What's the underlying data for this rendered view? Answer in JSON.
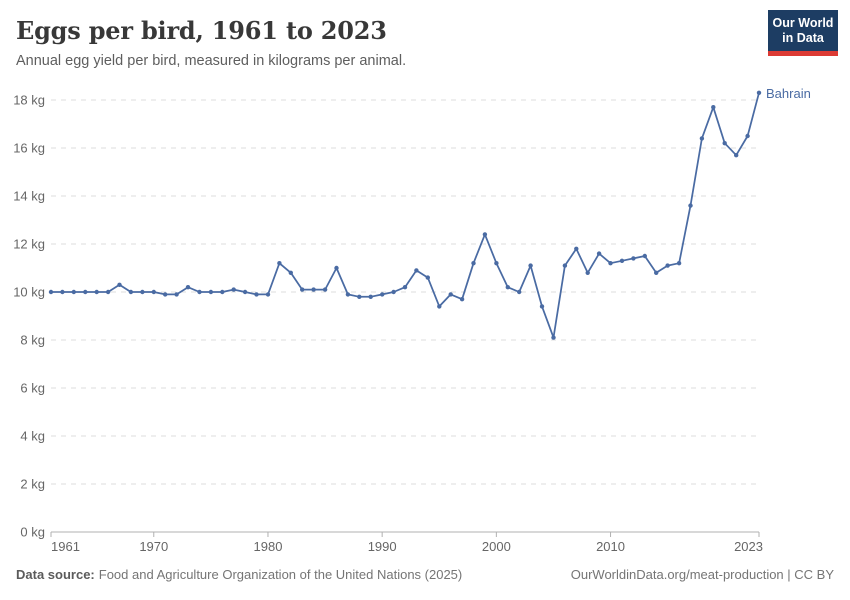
{
  "header": {
    "title": "Eggs per bird, 1961 to 2023",
    "subtitle": "Annual egg yield per bird, measured in kilograms per animal.",
    "logo": {
      "line1": "Our World",
      "line2": "in Data",
      "bg": "#1d3d63",
      "accent": "#dc3a34"
    }
  },
  "chart_data": {
    "type": "line",
    "title": "Eggs per bird, 1961 to 2023",
    "subtitle": "Annual egg yield per bird, measured in kilograms per animal.",
    "xlabel": "",
    "ylabel": "",
    "xlim": [
      1961,
      2023
    ],
    "ylim": [
      0,
      18
    ],
    "x_ticks": [
      1961,
      1970,
      1980,
      1990,
      2000,
      2010,
      2023
    ],
    "y_ticks": [
      0,
      2,
      4,
      6,
      8,
      10,
      12,
      14,
      16,
      18
    ],
    "y_tick_format": "{v} kg",
    "grid": "horizontal-dashed",
    "legend_position": "end-of-line-label",
    "colors": {
      "grid": "#dddddd",
      "axis": "#b0b0b0",
      "tick_label": "#666666"
    },
    "x": [
      1961,
      1962,
      1963,
      1964,
      1965,
      1966,
      1967,
      1968,
      1969,
      1970,
      1971,
      1972,
      1973,
      1974,
      1975,
      1976,
      1977,
      1978,
      1979,
      1980,
      1981,
      1982,
      1983,
      1984,
      1985,
      1986,
      1987,
      1988,
      1989,
      1990,
      1991,
      1992,
      1993,
      1994,
      1995,
      1996,
      1997,
      1998,
      1999,
      2000,
      2001,
      2002,
      2003,
      2004,
      2005,
      2006,
      2007,
      2008,
      2009,
      2010,
      2011,
      2012,
      2013,
      2014,
      2015,
      2016,
      2017,
      2018,
      2019,
      2020,
      2021,
      2022,
      2023
    ],
    "series": [
      {
        "name": "Bahrain",
        "color": "#4a6ba3",
        "values": [
          10.0,
          10.0,
          10.0,
          10.0,
          10.0,
          10.0,
          10.3,
          10.0,
          10.0,
          10.0,
          9.9,
          9.9,
          10.2,
          10.0,
          10.0,
          10.0,
          10.1,
          10.0,
          9.9,
          9.9,
          11.2,
          10.8,
          10.1,
          10.1,
          10.1,
          11.0,
          9.9,
          9.8,
          9.8,
          9.9,
          10.0,
          10.2,
          10.9,
          10.6,
          9.4,
          9.9,
          9.7,
          11.2,
          12.4,
          11.2,
          10.2,
          10.0,
          11.1,
          9.4,
          8.1,
          11.1,
          11.8,
          10.8,
          11.6,
          11.2,
          11.3,
          11.4,
          11.5,
          10.8,
          11.1,
          11.2,
          13.6,
          16.4,
          17.7,
          16.2,
          15.7,
          16.5,
          18.3
        ]
      }
    ]
  },
  "footer": {
    "datasource_label": "Data source:",
    "datasource": "Food and Agriculture Organization of the United Nations (2025)",
    "link": "OurWorldinData.org/meat-production | CC BY"
  }
}
